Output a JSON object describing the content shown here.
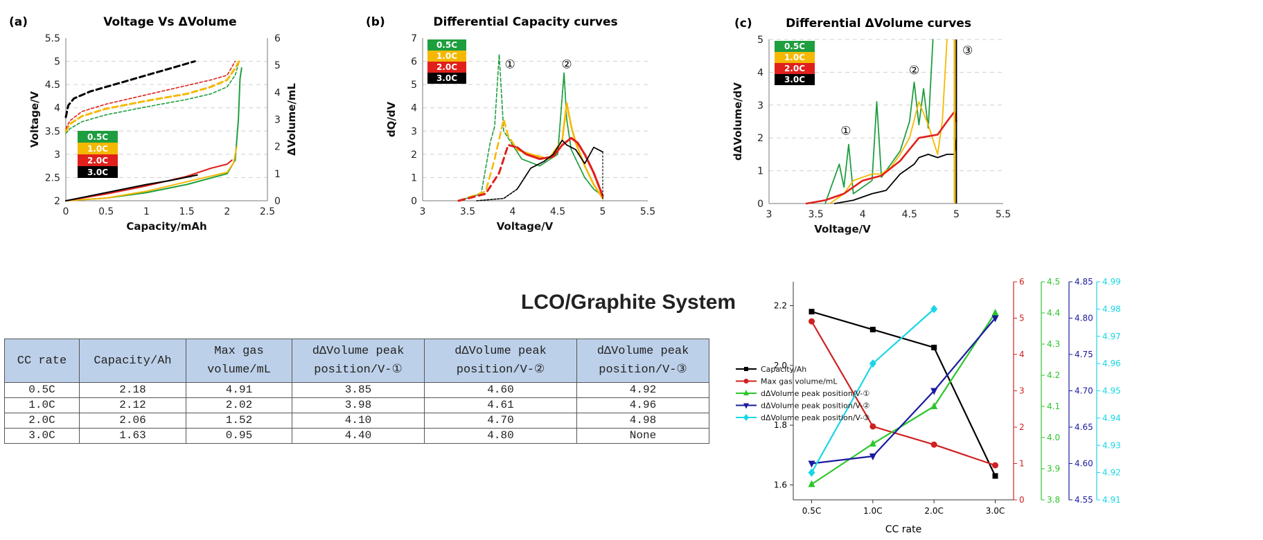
{
  "page_title": "LCO/Graphite System",
  "table": {
    "headers": [
      "CC rate",
      "Capacity/Ah",
      "Max gas volume/mL",
      "dΔVolume peak position/V-①",
      "dΔVolume peak position/V-②",
      "dΔVolume peak position/V-③"
    ],
    "rows": [
      [
        "0.5C",
        "2.18",
        "4.91",
        "3.85",
        "4.60",
        "4.92"
      ],
      [
        "1.0C",
        "2.12",
        "2.02",
        "3.98",
        "4.61",
        "4.96"
      ],
      [
        "2.0C",
        "2.06",
        "1.52",
        "4.10",
        "4.70",
        "4.98"
      ],
      [
        "3.0C",
        "1.63",
        "0.95",
        "4.40",
        "4.80",
        "None"
      ]
    ]
  },
  "colors": {
    "0.5C": "#1e9e3e",
    "1.0C": "#f5b800",
    "2.0C": "#e0201b",
    "3.0C": "#000000"
  },
  "chart_data": [
    {
      "panel": "(a)",
      "type": "line",
      "title": "Voltage Vs ΔVolume",
      "xlabel": "Capacity/mAh",
      "ylabel": "Voltage/V",
      "y2label": "ΔVolume/mL",
      "xlim": [
        0,
        2.5
      ],
      "ylim": [
        2,
        5.5
      ],
      "y2lim": [
        0,
        6
      ],
      "xticks": [
        "0",
        "0.5",
        "1",
        "1.5",
        "2",
        "2.5"
      ],
      "yticks": [
        "2",
        "2.5",
        "3",
        "3.5",
        "4",
        "4.5",
        "5",
        "5.5"
      ],
      "y2ticks": [
        "0",
        "1",
        "2",
        "3",
        "4",
        "5",
        "6"
      ],
      "legend": [
        "0.5C",
        "1.0C",
        "2.0C",
        "3.0C"
      ],
      "series": [
        {
          "name": "0.5C",
          "axis": "voltage",
          "x": [
            0,
            0.05,
            0.2,
            0.5,
            1.0,
            1.5,
            1.8,
            2.0,
            2.1,
            2.15
          ],
          "y": [
            3.45,
            3.55,
            3.7,
            3.85,
            4.02,
            4.18,
            4.3,
            4.45,
            4.7,
            5.0
          ]
        },
        {
          "name": "1.0C",
          "axis": "voltage",
          "x": [
            0,
            0.05,
            0.2,
            0.5,
            1.0,
            1.5,
            1.8,
            2.0,
            2.1,
            2.15
          ],
          "y": [
            3.5,
            3.65,
            3.82,
            3.98,
            4.15,
            4.3,
            4.45,
            4.6,
            4.85,
            5.0
          ]
        },
        {
          "name": "2.0C",
          "axis": "voltage",
          "x": [
            0,
            0.05,
            0.2,
            0.5,
            1.0,
            1.5,
            1.8,
            2.0,
            2.05,
            2.1
          ],
          "y": [
            3.55,
            3.72,
            3.92,
            4.08,
            4.28,
            4.48,
            4.6,
            4.7,
            4.85,
            5.0
          ]
        },
        {
          "name": "3.0C",
          "axis": "voltage",
          "x": [
            0,
            0.03,
            0.1,
            0.3,
            0.7,
            1.0,
            1.3,
            1.6
          ],
          "y": [
            3.8,
            4.05,
            4.2,
            4.35,
            4.55,
            4.7,
            4.85,
            5.0
          ]
        },
        {
          "name": "0.5C",
          "axis": "volume",
          "x": [
            0,
            0.5,
            1.0,
            1.5,
            2.0,
            2.1,
            2.14,
            2.16,
            2.18
          ],
          "y": [
            0,
            0.1,
            0.3,
            0.6,
            1.0,
            1.5,
            3.0,
            4.5,
            4.9
          ]
        },
        {
          "name": "1.0C",
          "axis": "volume",
          "x": [
            0,
            0.5,
            1.0,
            1.5,
            2.0,
            2.08,
            2.12
          ],
          "y": [
            0,
            0.1,
            0.35,
            0.7,
            1.05,
            1.4,
            2.0
          ]
        },
        {
          "name": "2.0C",
          "axis": "volume",
          "x": [
            0,
            0.5,
            1.0,
            1.5,
            1.8,
            2.0,
            2.06
          ],
          "y": [
            0,
            0.25,
            0.55,
            0.9,
            1.2,
            1.35,
            1.5
          ]
        },
        {
          "name": "3.0C",
          "axis": "volume",
          "x": [
            0,
            0.5,
            1.0,
            1.3,
            1.63
          ],
          "y": [
            0,
            0.3,
            0.6,
            0.75,
            0.95
          ]
        }
      ]
    },
    {
      "panel": "(b)",
      "type": "line",
      "title": "Differential Capacity curves",
      "xlabel": "Voltage/V",
      "ylabel": "dQ/dV",
      "xlim": [
        3,
        5.5
      ],
      "ylim": [
        0,
        7
      ],
      "xticks": [
        "3",
        "3.5",
        "4",
        "4.5",
        "5",
        "5.5"
      ],
      "yticks": [
        "0",
        "1",
        "2",
        "3",
        "4",
        "5",
        "6",
        "7"
      ],
      "legend": [
        "0.5C",
        "1.0C",
        "2.0C",
        "3.0C"
      ],
      "annotations": [
        "①",
        "②"
      ],
      "series": [
        {
          "name": "0.5C",
          "x": [
            3.4,
            3.65,
            3.75,
            3.8,
            3.85,
            3.9,
            4.0,
            4.1,
            4.3,
            4.5,
            4.57,
            4.6,
            4.65,
            4.7,
            4.8,
            4.9,
            5.0
          ],
          "y": [
            0,
            0.3,
            2.5,
            3.2,
            6.3,
            3.0,
            2.4,
            1.8,
            1.5,
            2.0,
            5.5,
            3.5,
            2.2,
            1.8,
            1.0,
            0.5,
            0.2
          ]
        },
        {
          "name": "1.0C",
          "x": [
            3.4,
            3.7,
            3.8,
            3.9,
            3.95,
            4.05,
            4.2,
            4.4,
            4.55,
            4.6,
            4.65,
            4.7,
            4.8,
            4.9,
            5.0
          ],
          "y": [
            0,
            0.4,
            1.8,
            3.5,
            2.8,
            2.2,
            2.0,
            1.8,
            2.6,
            4.2,
            3.2,
            2.5,
            1.5,
            0.7,
            0.1
          ]
        },
        {
          "name": "2.0C",
          "x": [
            3.4,
            3.7,
            3.85,
            3.95,
            4.05,
            4.15,
            4.3,
            4.45,
            4.55,
            4.65,
            4.72,
            4.8,
            4.9,
            5.0
          ],
          "y": [
            0,
            0.3,
            1.2,
            2.4,
            2.3,
            2.0,
            1.8,
            1.9,
            2.4,
            2.7,
            2.5,
            2.0,
            1.2,
            0.2
          ]
        },
        {
          "name": "3.0C",
          "x": [
            3.6,
            3.9,
            4.05,
            4.2,
            4.35,
            4.45,
            4.55,
            4.6,
            4.7,
            4.8,
            4.9,
            5.0
          ],
          "y": [
            0,
            0.1,
            0.5,
            1.4,
            1.7,
            2.0,
            2.6,
            2.4,
            2.2,
            1.6,
            2.3,
            2.1
          ]
        }
      ]
    },
    {
      "panel": "(c)",
      "type": "line",
      "title": "Differential ΔVolume curves",
      "xlabel": "Voltage/V",
      "ylabel": "dΔVolume/dV",
      "xlim": [
        3,
        5.5
      ],
      "ylim": [
        0,
        5
      ],
      "xticks": [
        "3",
        "3.5",
        "4",
        "4.5",
        "5",
        "5.5"
      ],
      "yticks": [
        "0",
        "1",
        "2",
        "3",
        "4",
        "5"
      ],
      "legend": [
        "0.5C",
        "1.0C",
        "2.0C",
        "3.0C"
      ],
      "annotations": [
        "①",
        "②",
        "③"
      ],
      "series": [
        {
          "name": "0.5C",
          "x": [
            3.6,
            3.75,
            3.8,
            3.85,
            3.9,
            4.0,
            4.1,
            4.15,
            4.2,
            4.3,
            4.4,
            4.5,
            4.55,
            4.6,
            4.65,
            4.7,
            4.75
          ],
          "y": [
            0,
            1.2,
            0.5,
            1.8,
            0.3,
            0.5,
            0.7,
            3.1,
            0.8,
            1.2,
            1.6,
            2.5,
            3.7,
            2.4,
            3.5,
            2.3,
            5.0
          ]
        },
        {
          "name": "1.0C",
          "x": [
            3.65,
            3.8,
            3.9,
            4.0,
            4.1,
            4.2,
            4.3,
            4.4,
            4.5,
            4.6,
            4.7,
            4.8,
            4.85,
            4.9
          ],
          "y": [
            0,
            0.3,
            0.7,
            0.8,
            0.9,
            0.9,
            1.1,
            1.5,
            2.0,
            3.1,
            2.4,
            1.5,
            2.5,
            5.0
          ]
        },
        {
          "name": "2.0C",
          "x": [
            3.4,
            3.6,
            3.8,
            4.0,
            4.2,
            4.4,
            4.6,
            4.8,
            4.9,
            4.98,
            5.0
          ],
          "y": [
            0,
            0.1,
            0.3,
            0.7,
            0.85,
            1.3,
            2.0,
            2.1,
            2.5,
            2.8,
            2.5
          ]
        },
        {
          "name": "3.0C",
          "x": [
            3.7,
            3.9,
            4.1,
            4.25,
            4.4,
            4.55,
            4.6,
            4.7,
            4.8,
            4.9,
            4.98,
            5.0
          ],
          "y": [
            0,
            0.1,
            0.3,
            0.4,
            0.9,
            1.2,
            1.4,
            1.5,
            1.4,
            1.5,
            1.5,
            2.0
          ]
        }
      ]
    },
    {
      "panel": "summary",
      "type": "line",
      "xlabel": "CC rate",
      "categories": [
        "0.5C",
        "1.0C",
        "2.0C",
        "3.0C"
      ],
      "axes": [
        {
          "id": "capacity",
          "color": "#000000",
          "lim": [
            1.55,
            2.28
          ],
          "ticks": [
            "1.6",
            "1.8",
            "2.0",
            "2.2"
          ]
        },
        {
          "id": "gas",
          "color": "#d02020",
          "lim": [
            0,
            6
          ],
          "ticks": [
            "0",
            "1",
            "2",
            "3",
            "4",
            "5",
            "6"
          ]
        },
        {
          "id": "peak1",
          "color": "#2bc62b",
          "lim": [
            3.8,
            4.5
          ],
          "ticks": [
            "3.8",
            "3.9",
            "4.0",
            "4.1",
            "4.2",
            "4.3",
            "4.4",
            "4.5"
          ]
        },
        {
          "id": "peak2",
          "color": "#1a1aa0",
          "lim": [
            4.55,
            4.85
          ],
          "ticks": [
            "4.55",
            "4.60",
            "4.65",
            "4.70",
            "4.75",
            "4.80",
            "4.85"
          ]
        },
        {
          "id": "peak3",
          "color": "#18d6e6",
          "lim": [
            4.91,
            4.99
          ],
          "ticks": [
            "4.91",
            "4.92",
            "4.93",
            "4.94",
            "4.95",
            "4.96",
            "4.97",
            "4.98",
            "4.99"
          ]
        }
      ],
      "series": [
        {
          "name": "Capacity/Ah",
          "axis": "capacity",
          "color": "#000000",
          "marker": "square",
          "values": [
            2.18,
            2.12,
            2.06,
            1.63
          ]
        },
        {
          "name": "Max gas volume/mL",
          "axis": "gas",
          "color": "#d02020",
          "marker": "circle",
          "values": [
            4.91,
            2.02,
            1.52,
            0.95
          ]
        },
        {
          "name": "dΔVolume peak position/V-①",
          "axis": "peak1",
          "color": "#2bc62b",
          "marker": "triangle-up",
          "values": [
            3.85,
            3.98,
            4.1,
            4.4
          ]
        },
        {
          "name": "dΔVolume peak position/V-②",
          "axis": "peak2",
          "color": "#1a1aa0",
          "marker": "triangle-down",
          "values": [
            4.6,
            4.61,
            4.7,
            4.8
          ]
        },
        {
          "name": "dΔVolume peak position/V-③",
          "axis": "peak3",
          "color": "#18d6e6",
          "marker": "diamond",
          "values": [
            4.92,
            4.96,
            4.98,
            null
          ]
        }
      ]
    }
  ]
}
